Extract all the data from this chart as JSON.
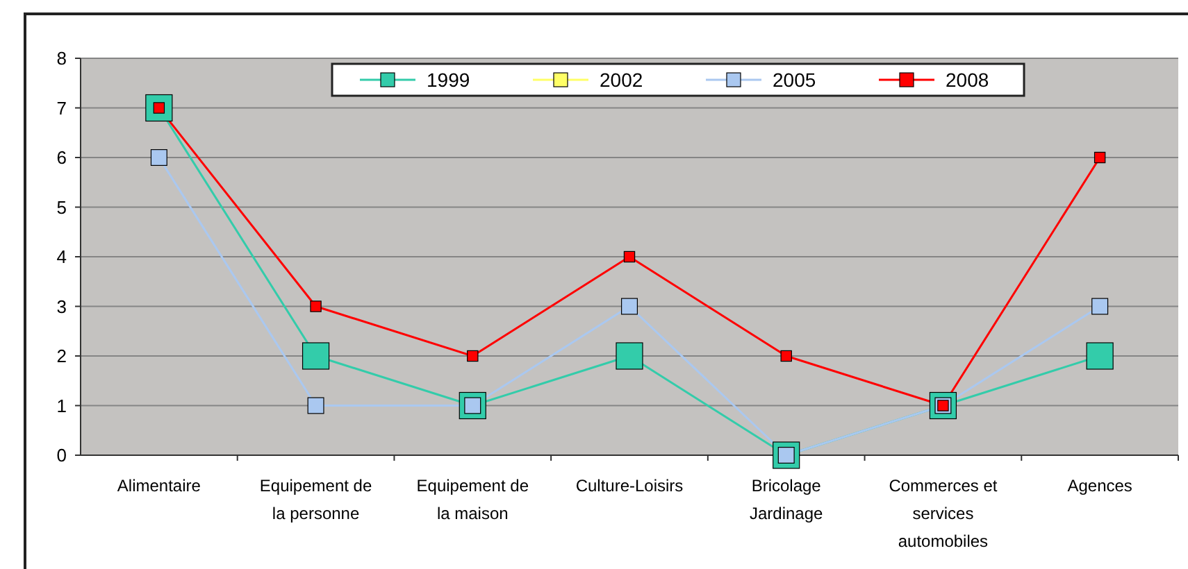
{
  "chart_data": {
    "type": "line",
    "categories": [
      "Alimentaire",
      "Equipement de la personne",
      "Equipement de la maison",
      "Culture-Loisirs",
      "Bricolage Jardinage",
      "Commerces et services automobiles",
      "Agences"
    ],
    "series": [
      {
        "name": "1999",
        "color": "#33ccaa",
        "values": [
          7,
          2,
          1,
          2,
          0,
          1,
          2
        ]
      },
      {
        "name": "2002",
        "color": "#ffff66",
        "values": [
          null,
          null,
          null,
          null,
          null,
          null,
          null
        ]
      },
      {
        "name": "2005",
        "color": "#aac8f0",
        "values": [
          6,
          1,
          1,
          3,
          0,
          1,
          3
        ]
      },
      {
        "name": "2008",
        "color": "#ff0000",
        "values": [
          7,
          3,
          2,
          4,
          2,
          1,
          6
        ]
      }
    ],
    "ylim": [
      0,
      8
    ],
    "yticks": [
      0,
      1,
      2,
      3,
      4,
      5,
      6,
      7,
      8
    ],
    "grid": "y",
    "legend": "top",
    "marker": "square",
    "line_style": "solid"
  }
}
